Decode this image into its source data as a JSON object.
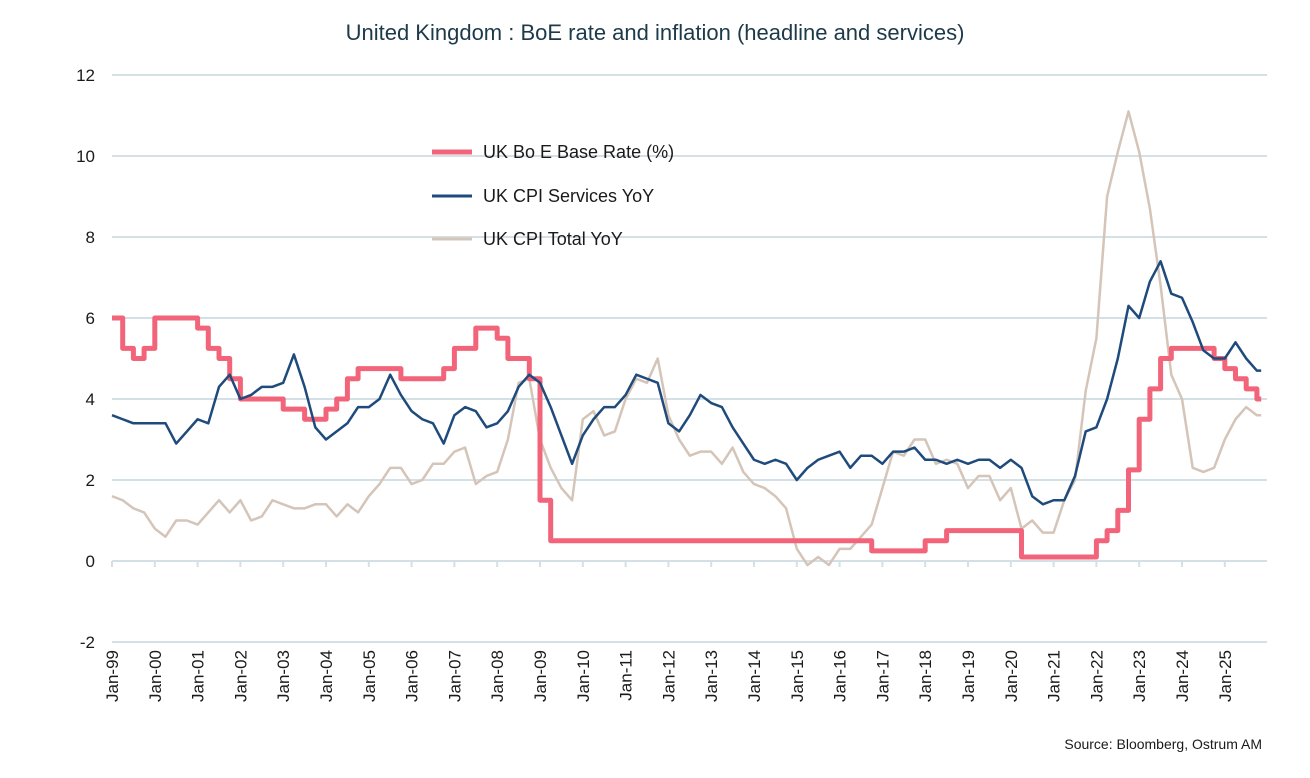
{
  "chart_data": {
    "type": "line",
    "title": "United Kingdom : BoE rate and inflation (headline and services)",
    "source": "Source: Bloomberg,  Ostrum AM",
    "ylim": [
      -2,
      12
    ],
    "y_ticks": [
      "-2",
      "0",
      "2",
      "4",
      "6",
      "8",
      "10",
      "12"
    ],
    "x_ticks": [
      "Jan-99",
      "Jan-00",
      "Jan-01",
      "Jan-02",
      "Jan-03",
      "Jan-04",
      "Jan-05",
      "Jan-06",
      "Jan-07",
      "Jan-08",
      "Jan-09",
      "Jan-10",
      "Jan-11",
      "Jan-12",
      "Jan-13",
      "Jan-14",
      "Jan-15",
      "Jan-16",
      "Jan-17",
      "Jan-18",
      "Jan-19",
      "Jan-20",
      "Jan-21",
      "Jan-22",
      "Jan-23",
      "Jan-24",
      "Jan-25"
    ],
    "grid": true,
    "legend_position": "top-center",
    "sampling": "quarterly (Jan, Apr, Jul, Oct) from Jan-99",
    "series": [
      {
        "name": "UK Bo E Base Rate (%)",
        "color": "#f2647a",
        "values": [
          6.0,
          5.25,
          5.0,
          5.25,
          6.0,
          6.0,
          6.0,
          6.0,
          5.75,
          5.25,
          5.0,
          4.5,
          4.0,
          4.0,
          4.0,
          4.0,
          3.75,
          3.75,
          3.5,
          3.5,
          3.75,
          4.0,
          4.5,
          4.75,
          4.75,
          4.75,
          4.75,
          4.5,
          4.5,
          4.5,
          4.5,
          4.75,
          5.25,
          5.25,
          5.75,
          5.75,
          5.5,
          5.0,
          5.0,
          4.5,
          1.5,
          0.5,
          0.5,
          0.5,
          0.5,
          0.5,
          0.5,
          0.5,
          0.5,
          0.5,
          0.5,
          0.5,
          0.5,
          0.5,
          0.5,
          0.5,
          0.5,
          0.5,
          0.5,
          0.5,
          0.5,
          0.5,
          0.5,
          0.5,
          0.5,
          0.5,
          0.5,
          0.5,
          0.5,
          0.5,
          0.5,
          0.25,
          0.25,
          0.25,
          0.25,
          0.25,
          0.5,
          0.5,
          0.75,
          0.75,
          0.75,
          0.75,
          0.75,
          0.75,
          0.75,
          0.1,
          0.1,
          0.1,
          0.1,
          0.1,
          0.1,
          0.1,
          0.5,
          0.75,
          1.25,
          2.25,
          3.5,
          4.25,
          5.0,
          5.25,
          5.25,
          5.25,
          5.25,
          5.0,
          4.75,
          4.5,
          4.25,
          4.0
        ]
      },
      {
        "name": "UK CPI Services YoY",
        "color": "#1f4a7c",
        "values": [
          3.6,
          3.5,
          3.4,
          3.4,
          3.4,
          3.4,
          2.9,
          3.2,
          3.5,
          3.4,
          4.3,
          4.6,
          4.0,
          4.1,
          4.3,
          4.3,
          4.4,
          5.1,
          4.3,
          3.3,
          3.0,
          3.2,
          3.4,
          3.8,
          3.8,
          4.0,
          4.6,
          4.1,
          3.7,
          3.5,
          3.4,
          2.9,
          3.6,
          3.8,
          3.7,
          3.3,
          3.4,
          3.7,
          4.3,
          4.6,
          4.4,
          3.8,
          3.1,
          2.4,
          3.1,
          3.5,
          3.8,
          3.8,
          4.1,
          4.6,
          4.5,
          4.4,
          3.4,
          3.2,
          3.6,
          4.1,
          3.9,
          3.8,
          3.3,
          2.9,
          2.5,
          2.4,
          2.5,
          2.4,
          2.0,
          2.3,
          2.5,
          2.6,
          2.7,
          2.3,
          2.6,
          2.6,
          2.4,
          2.7,
          2.7,
          2.8,
          2.5,
          2.5,
          2.4,
          2.5,
          2.4,
          2.5,
          2.5,
          2.3,
          2.5,
          2.3,
          1.6,
          1.4,
          1.5,
          1.5,
          2.1,
          3.2,
          3.3,
          4.0,
          5.0,
          6.3,
          6.0,
          6.9,
          7.4,
          6.6,
          6.5,
          5.9,
          5.2,
          5.0,
          5.0,
          5.4,
          5.0,
          4.7
        ]
      },
      {
        "name": "UK CPI Total YoY",
        "color": "#d5c4b8",
        "values": [
          1.6,
          1.5,
          1.3,
          1.2,
          0.8,
          0.6,
          1.0,
          1.0,
          0.9,
          1.2,
          1.5,
          1.2,
          1.5,
          1.0,
          1.1,
          1.5,
          1.4,
          1.3,
          1.3,
          1.4,
          1.4,
          1.1,
          1.4,
          1.2,
          1.6,
          1.9,
          2.3,
          2.3,
          1.9,
          2.0,
          2.4,
          2.4,
          2.7,
          2.8,
          1.9,
          2.1,
          2.2,
          3.0,
          4.4,
          4.5,
          3.0,
          2.3,
          1.8,
          1.5,
          3.5,
          3.7,
          3.1,
          3.2,
          4.0,
          4.5,
          4.4,
          5.0,
          3.6,
          3.0,
          2.6,
          2.7,
          2.7,
          2.4,
          2.8,
          2.2,
          1.9,
          1.8,
          1.6,
          1.3,
          0.3,
          -0.1,
          0.1,
          -0.1,
          0.3,
          0.3,
          0.6,
          0.9,
          1.8,
          2.7,
          2.6,
          3.0,
          3.0,
          2.4,
          2.5,
          2.4,
          1.8,
          2.1,
          2.1,
          1.5,
          1.8,
          0.8,
          1.0,
          0.7,
          0.7,
          1.5,
          2.0,
          4.2,
          5.5,
          9.0,
          10.1,
          11.1,
          10.1,
          8.7,
          6.8,
          4.6,
          4.0,
          2.3,
          2.2,
          2.3,
          3.0,
          3.5,
          3.8,
          3.6
        ]
      }
    ]
  }
}
